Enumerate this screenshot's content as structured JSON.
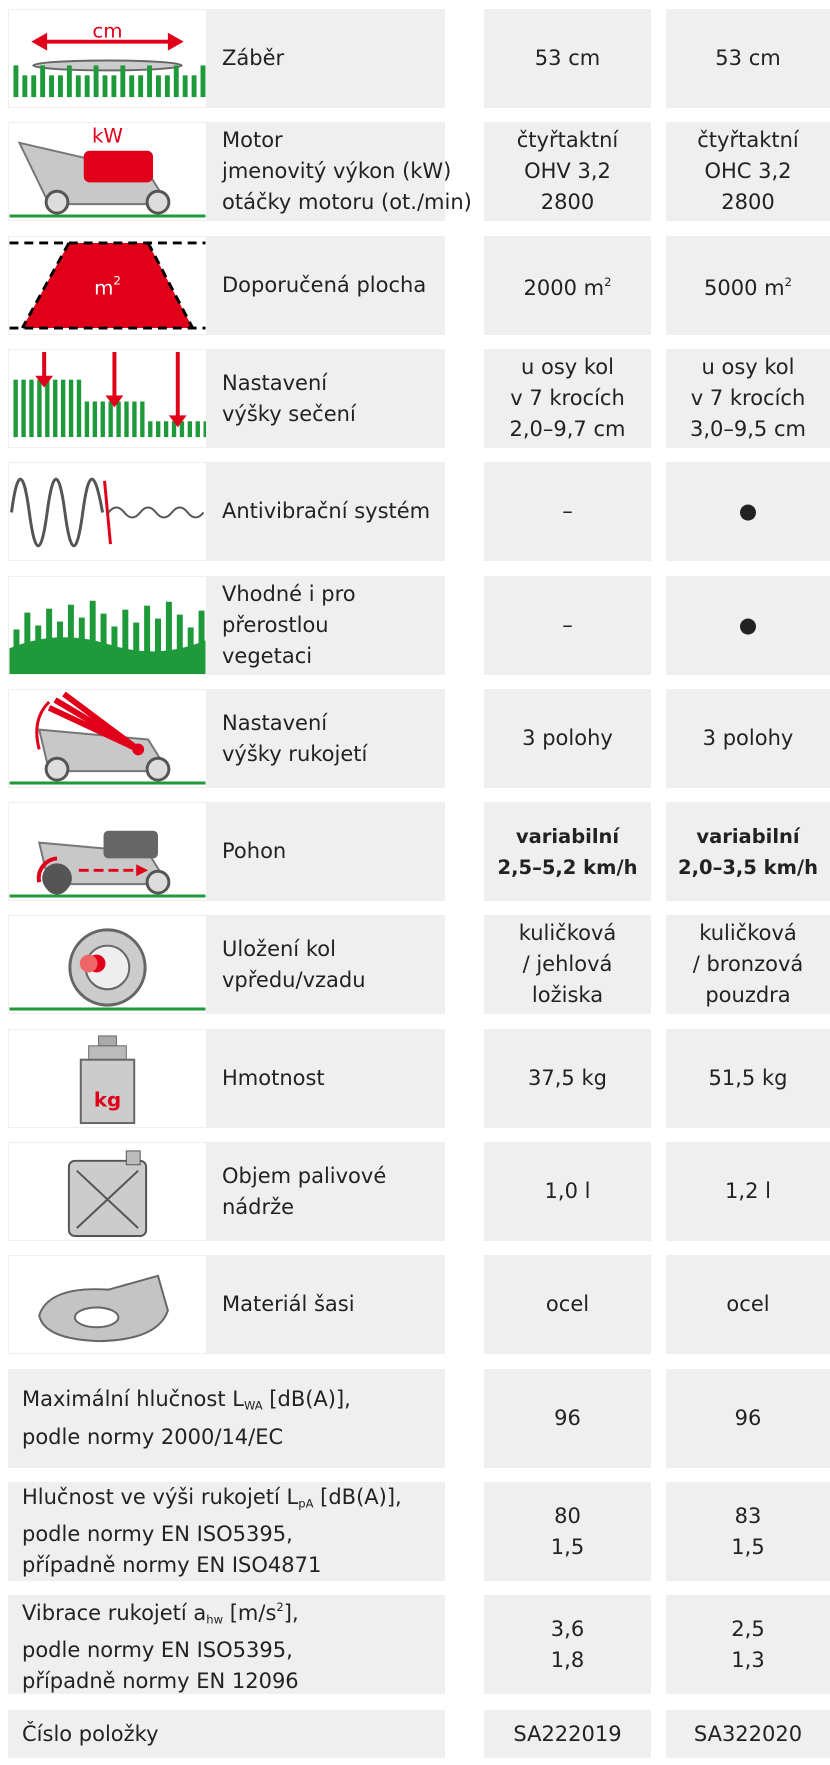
{
  "rows": [
    {
      "icon_text": "cm",
      "label": [
        "Záběr"
      ],
      "values": [
        [
          "53 cm"
        ],
        [
          "53 cm"
        ]
      ]
    },
    {
      "icon_text": "kW",
      "label": [
        "Motor",
        "jmenovitý výkon (kW)",
        "otáčky motoru (ot./min)"
      ],
      "values": [
        [
          "čtyřtaktní",
          "OHV 3,2",
          "2800"
        ],
        [
          "čtyřtaktní",
          "OHC 3,2",
          "2800"
        ]
      ]
    },
    {
      "icon_text": [
        {
          "text": "m"
        },
        {
          "sup": "2"
        }
      ],
      "label": [
        "Doporučená plocha"
      ],
      "values": [
        [
          [
            {
              "text": "2000 m"
            },
            {
              "sup": "2"
            }
          ]
        ],
        [
          [
            {
              "text": "5000 m"
            },
            {
              "sup": "2"
            }
          ]
        ]
      ]
    },
    {
      "label": [
        "Nastavení",
        "výšky sečení"
      ],
      "values": [
        [
          "u osy kol",
          "v 7 krocích",
          "2,0–9,7 cm"
        ],
        [
          "u osy kol",
          "v 7 krocích",
          "3,0–9,5 cm"
        ]
      ]
    },
    {
      "label": [
        "Antivibrační systém"
      ],
      "values": [
        [
          "–"
        ],
        [
          "●"
        ]
      ]
    },
    {
      "label": [
        "Vhodné i pro",
        "přerostlou",
        "vegetaci"
      ],
      "values": [
        [
          "–"
        ],
        [
          "●"
        ]
      ]
    },
    {
      "label": [
        "Nastavení",
        "výšky rukojetí"
      ],
      "values": [
        [
          "3 polohy"
        ],
        [
          "3 polohy"
        ]
      ]
    },
    {
      "label": [
        "Pohon"
      ],
      "bold": true,
      "values": [
        [
          "variabilní",
          "2,5–5,2 km/h"
        ],
        [
          "variabilní",
          "2,0–3,5 km/h"
        ]
      ]
    },
    {
      "label": [
        "Uložení kol",
        "vpředu/vzadu"
      ],
      "values": [
        [
          "kuličková",
          "/ jehlová",
          "ložiska"
        ],
        [
          "kuličková",
          "/ bronzová",
          "pouzdra"
        ]
      ]
    },
    {
      "icon_text": "kg",
      "label": [
        "Hmotnost"
      ],
      "values": [
        [
          "37,5 kg"
        ],
        [
          "51,5 kg"
        ]
      ]
    },
    {
      "label": [
        "Objem palivové",
        "nádrže"
      ],
      "values": [
        [
          "1,0 l"
        ],
        [
          "1,2 l"
        ]
      ]
    },
    {
      "label": [
        "Materiál šasi"
      ],
      "values": [
        [
          "ocel"
        ],
        [
          "ocel"
        ]
      ]
    },
    {
      "label": [
        [
          {
            "text": "Maximální hlučnost L"
          },
          {
            "sub": "WA"
          },
          {
            "text": " [dB(A)],"
          }
        ],
        "podle normy 2000/14/EC"
      ],
      "values": [
        [
          "96"
        ],
        [
          "96"
        ]
      ]
    },
    {
      "label": [
        [
          {
            "text": "Hlučnost ve výši rukojetí L"
          },
          {
            "sub": "pA"
          },
          {
            "text": " [dB(A)],"
          }
        ],
        "podle normy EN ISO5395,",
        "případně normy EN ISO4871"
      ],
      "values": [
        [
          "80",
          "1,5"
        ],
        [
          "83",
          "1,5"
        ]
      ]
    },
    {
      "label": [
        [
          {
            "text": "Vibrace rukojetí a"
          },
          {
            "sub": "hw"
          },
          {
            "text": " [m/s"
          },
          {
            "sup": "2"
          },
          {
            "text": "],"
          }
        ],
        "podle normy EN ISO5395,",
        "případně normy EN 12096"
      ],
      "values": [
        [
          "3,6",
          "1,8"
        ],
        [
          "2,5",
          "1,3"
        ]
      ]
    },
    {
      "label": [
        "Číslo položky"
      ],
      "values": [
        [
          "SA222019"
        ],
        [
          "SA322020"
        ]
      ]
    }
  ]
}
